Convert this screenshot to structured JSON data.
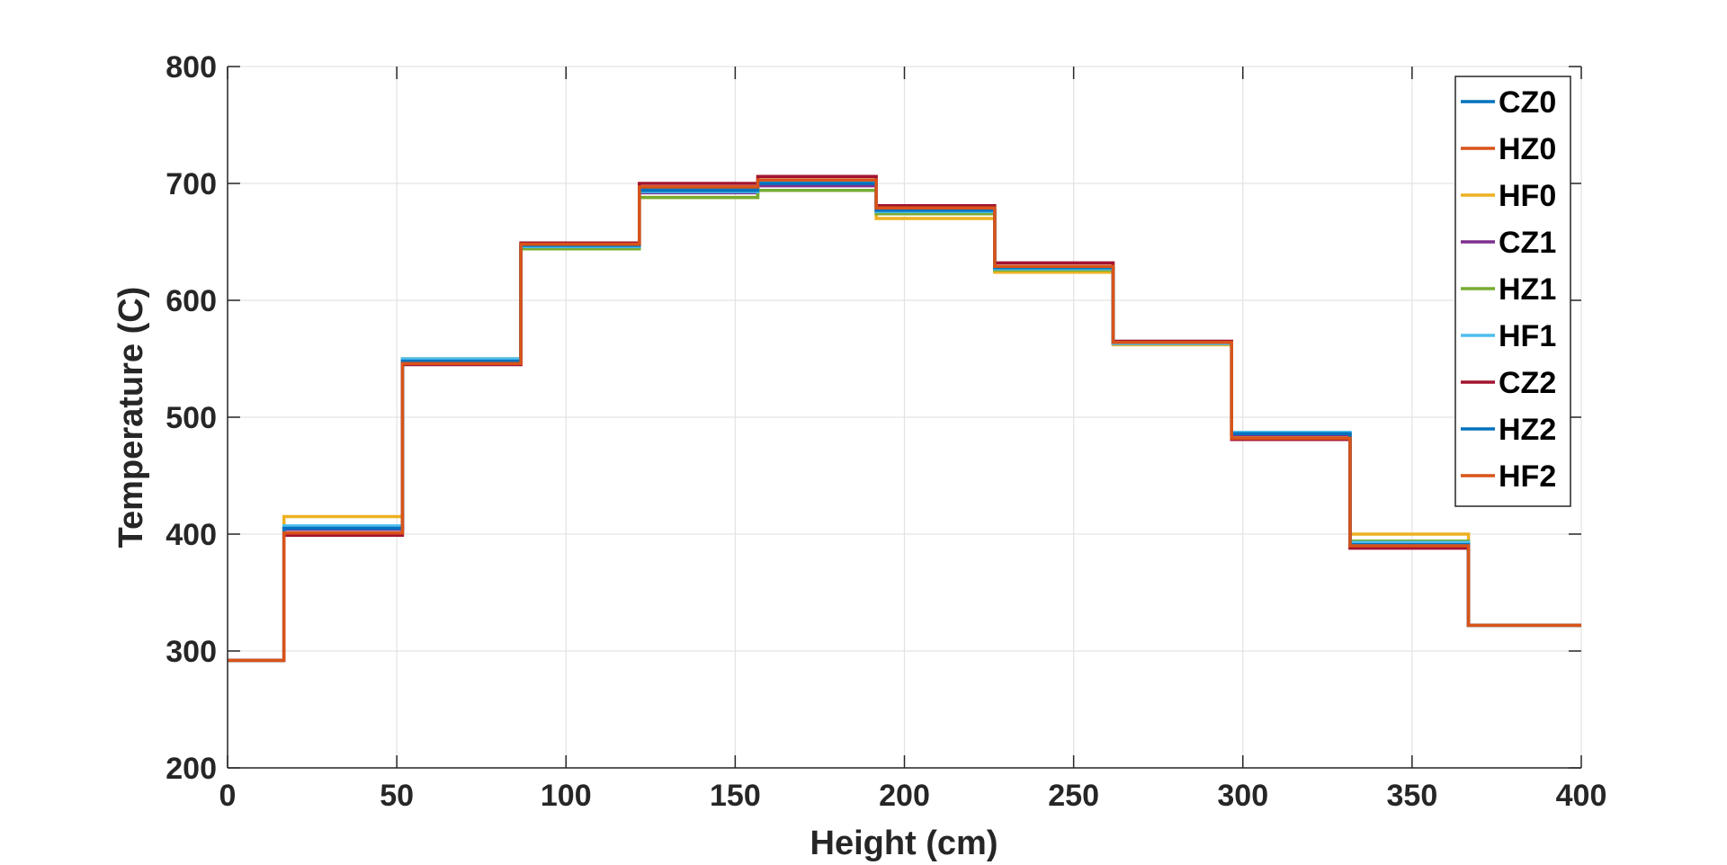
{
  "chart_data": {
    "type": "line",
    "step": "post",
    "xlabel": "Height (cm)",
    "ylabel": "Temperature (C)",
    "xlim": [
      0,
      400
    ],
    "ylim": [
      200,
      800
    ],
    "xticks": [
      0,
      50,
      100,
      150,
      200,
      250,
      300,
      350,
      400
    ],
    "yticks": [
      200,
      300,
      400,
      500,
      600,
      700,
      800
    ],
    "grid": true,
    "legend_position": "top-right",
    "x": [
      0,
      16.67,
      51.67,
      86.67,
      121.67,
      156.67,
      191.67,
      226.67,
      261.67,
      296.67,
      331.67,
      366.67,
      400
    ],
    "series": [
      {
        "name": "CZ0",
        "color": "#0072BD",
        "values": [
          292,
          405,
          548,
          647,
          695,
          700,
          678,
          628,
          564,
          486,
          392,
          322,
          322
        ]
      },
      {
        "name": "HZ0",
        "color": "#D95319",
        "values": [
          292,
          401,
          546,
          648,
          697,
          703,
          679,
          629,
          564,
          484,
          390,
          322,
          322
        ]
      },
      {
        "name": "HF0",
        "color": "#EDB120",
        "values": [
          292,
          415,
          550,
          645,
          688,
          694,
          670,
          624,
          562,
          483,
          400,
          322,
          322
        ]
      },
      {
        "name": "CZ1",
        "color": "#7E2F8E",
        "values": [
          292,
          404,
          548,
          646,
          692,
          698,
          676,
          627,
          564,
          485,
          393,
          322,
          322
        ]
      },
      {
        "name": "HZ1",
        "color": "#77AC30",
        "values": [
          292,
          406,
          549,
          644,
          688,
          694,
          674,
          626,
          563,
          486,
          394,
          322,
          322
        ]
      },
      {
        "name": "HF1",
        "color": "#4DBEEE",
        "values": [
          292,
          407,
          550,
          646,
          693,
          701,
          676,
          627,
          563,
          487,
          393,
          322,
          322
        ]
      },
      {
        "name": "CZ2",
        "color": "#A2142F",
        "values": [
          292,
          399,
          545,
          649,
          700,
          706,
          681,
          632,
          565,
          481,
          388,
          322,
          322
        ]
      },
      {
        "name": "HZ2",
        "color": "#0072BD",
        "values": [
          292,
          405,
          548,
          647,
          694,
          700,
          677,
          628,
          564,
          486,
          391,
          322,
          322
        ]
      },
      {
        "name": "HF2",
        "color": "#D95319",
        "values": [
          292,
          401,
          546,
          648,
          697,
          703,
          679,
          629,
          564,
          482,
          390,
          322,
          322
        ]
      }
    ]
  }
}
